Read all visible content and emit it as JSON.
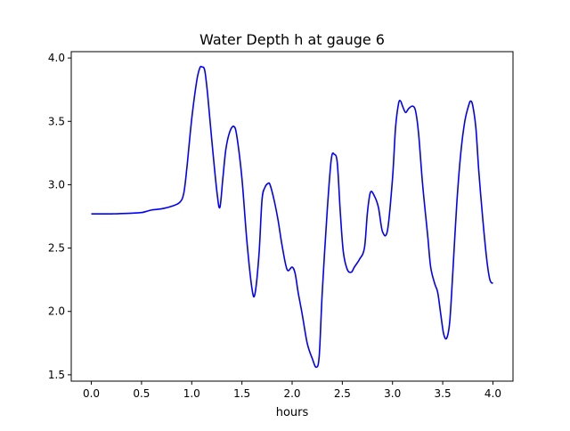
{
  "chart_data": {
    "type": "line",
    "title": "Water Depth h at gauge 6",
    "xlabel": "hours",
    "ylabel": "",
    "xlim": [
      -0.2,
      4.2
    ],
    "ylim": [
      1.45,
      4.05
    ],
    "grid": false,
    "legend": "none",
    "x_ticks": [
      0.0,
      0.5,
      1.0,
      1.5,
      2.0,
      2.5,
      3.0,
      3.5,
      4.0
    ],
    "x_tick_labels": [
      "0.0",
      "0.5",
      "1.0",
      "1.5",
      "2.0",
      "2.5",
      "3.0",
      "3.5",
      "4.0"
    ],
    "y_ticks": [
      1.5,
      2.0,
      2.5,
      3.0,
      3.5,
      4.0
    ],
    "y_tick_labels": [
      "1.5",
      "2.0",
      "2.5",
      "3.0",
      "3.5",
      "4.0"
    ],
    "series": [
      {
        "color": "#0000ff",
        "x": [
          0.0,
          0.2,
          0.4,
          0.5,
          0.55,
          0.6,
          0.7,
          0.8,
          0.88,
          0.92,
          0.95,
          1.0,
          1.05,
          1.08,
          1.1,
          1.13,
          1.16,
          1.2,
          1.25,
          1.28,
          1.31,
          1.34,
          1.38,
          1.42,
          1.45,
          1.5,
          1.55,
          1.6,
          1.63,
          1.67,
          1.7,
          1.73,
          1.76,
          1.78,
          1.82,
          1.86,
          1.9,
          1.95,
          2.0,
          2.03,
          2.06,
          2.1,
          2.15,
          2.2,
          2.24,
          2.27,
          2.3,
          2.35,
          2.39,
          2.42,
          2.45,
          2.48,
          2.51,
          2.55,
          2.59,
          2.62,
          2.67,
          2.72,
          2.75,
          2.78,
          2.82,
          2.86,
          2.9,
          2.95,
          3.0,
          3.03,
          3.06,
          3.08,
          3.1,
          3.13,
          3.16,
          3.2,
          3.23,
          3.26,
          3.3,
          3.35,
          3.38,
          3.42,
          3.45,
          3.48,
          3.51,
          3.54,
          3.57,
          3.6,
          3.64,
          3.68,
          3.72,
          3.76,
          3.78,
          3.8,
          3.83,
          3.86,
          3.9,
          3.94,
          3.97,
          4.0
        ],
        "values": [
          2.77,
          2.77,
          2.775,
          2.78,
          2.79,
          2.8,
          2.81,
          2.83,
          2.86,
          2.93,
          3.12,
          3.52,
          3.82,
          3.92,
          3.93,
          3.9,
          3.7,
          3.35,
          2.95,
          2.82,
          3.05,
          3.28,
          3.42,
          3.46,
          3.38,
          3.05,
          2.55,
          2.18,
          2.14,
          2.45,
          2.88,
          2.98,
          3.01,
          3.0,
          2.88,
          2.72,
          2.52,
          2.33,
          2.35,
          2.3,
          2.15,
          1.98,
          1.75,
          1.63,
          1.56,
          1.65,
          2.15,
          2.8,
          3.2,
          3.24,
          3.17,
          2.78,
          2.47,
          2.33,
          2.31,
          2.35,
          2.41,
          2.5,
          2.78,
          2.94,
          2.91,
          2.82,
          2.63,
          2.64,
          3.05,
          3.45,
          3.64,
          3.66,
          3.62,
          3.57,
          3.6,
          3.62,
          3.58,
          3.4,
          3.0,
          2.6,
          2.35,
          2.22,
          2.15,
          1.98,
          1.82,
          1.79,
          1.92,
          2.3,
          2.85,
          3.25,
          3.5,
          3.63,
          3.66,
          3.62,
          3.45,
          3.1,
          2.72,
          2.4,
          2.25,
          2.22
        ]
      }
    ]
  }
}
